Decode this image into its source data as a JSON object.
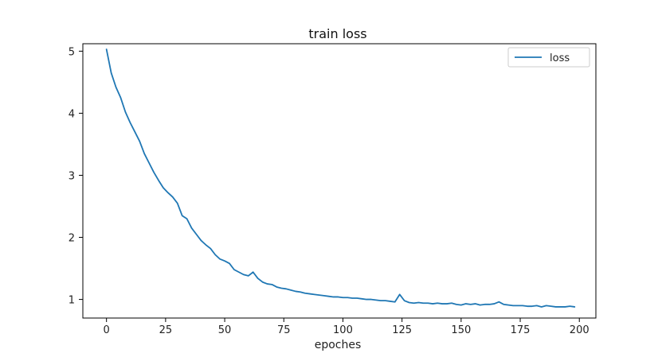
{
  "chart_data": {
    "type": "line",
    "title": "train loss",
    "xlabel": "epoches",
    "ylabel": "",
    "xlim": [
      -10,
      207
    ],
    "ylim": [
      0.7,
      5.12
    ],
    "xticks": [
      0,
      25,
      50,
      75,
      100,
      125,
      150,
      175,
      200
    ],
    "yticks": [
      1,
      2,
      3,
      4,
      5
    ],
    "grid": false,
    "legend_position": "top-right",
    "series": [
      {
        "name": "loss",
        "color": "#1f77b4",
        "x": [
          0,
          2,
          4,
          6,
          8,
          10,
          12,
          14,
          16,
          18,
          20,
          22,
          24,
          26,
          28,
          30,
          32,
          34,
          36,
          38,
          40,
          42,
          44,
          46,
          48,
          50,
          52,
          54,
          56,
          58,
          60,
          62,
          64,
          66,
          68,
          70,
          72,
          74,
          76,
          78,
          80,
          82,
          84,
          86,
          88,
          90,
          92,
          94,
          96,
          98,
          100,
          102,
          104,
          106,
          108,
          110,
          112,
          114,
          116,
          118,
          120,
          122,
          124,
          126,
          128,
          130,
          132,
          134,
          136,
          138,
          140,
          142,
          144,
          146,
          148,
          150,
          152,
          154,
          156,
          158,
          160,
          162,
          164,
          166,
          168,
          170,
          172,
          174,
          176,
          178,
          180,
          182,
          184,
          186,
          188,
          190,
          192,
          194,
          196,
          198
        ],
        "y": [
          5.03,
          4.65,
          4.42,
          4.25,
          4.02,
          3.85,
          3.7,
          3.55,
          3.35,
          3.2,
          3.05,
          2.92,
          2.8,
          2.72,
          2.65,
          2.55,
          2.35,
          2.3,
          2.15,
          2.05,
          1.95,
          1.88,
          1.82,
          1.72,
          1.65,
          1.62,
          1.58,
          1.48,
          1.44,
          1.4,
          1.38,
          1.44,
          1.34,
          1.28,
          1.25,
          1.24,
          1.2,
          1.18,
          1.17,
          1.15,
          1.13,
          1.12,
          1.1,
          1.09,
          1.08,
          1.07,
          1.06,
          1.05,
          1.04,
          1.04,
          1.03,
          1.03,
          1.02,
          1.02,
          1.01,
          1.0,
          1.0,
          0.99,
          0.98,
          0.98,
          0.97,
          0.96,
          1.08,
          0.98,
          0.95,
          0.94,
          0.95,
          0.94,
          0.94,
          0.93,
          0.94,
          0.93,
          0.93,
          0.94,
          0.92,
          0.91,
          0.93,
          0.92,
          0.93,
          0.91,
          0.92,
          0.92,
          0.93,
          0.96,
          0.92,
          0.91,
          0.9,
          0.9,
          0.9,
          0.89,
          0.89,
          0.9,
          0.88,
          0.9,
          0.89,
          0.88,
          0.88,
          0.88,
          0.89,
          0.88
        ]
      }
    ]
  }
}
